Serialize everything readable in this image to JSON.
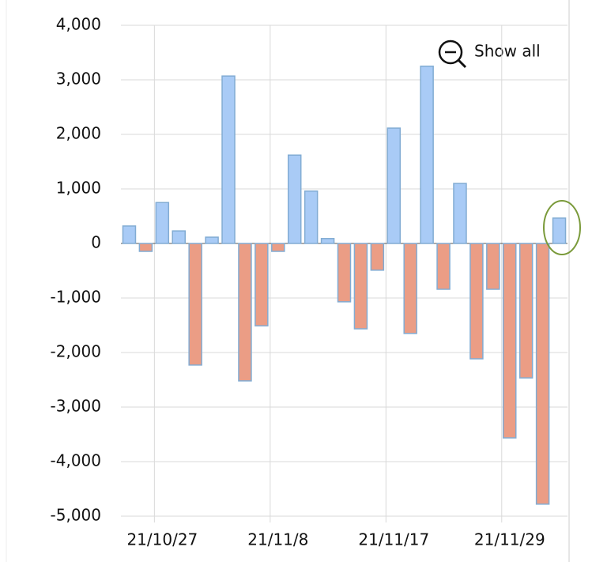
{
  "chart_data": {
    "type": "bar",
    "categories": [
      null,
      null,
      "21/10/27",
      null,
      null,
      null,
      null,
      null,
      null,
      "21/11/8",
      null,
      null,
      null,
      null,
      null,
      null,
      "21/11/17",
      null,
      null,
      null,
      null,
      null,
      null,
      "21/11/29",
      null,
      null,
      null
    ],
    "values": [
      320,
      -145,
      750,
      230,
      -2230,
      115,
      3070,
      -2520,
      -1510,
      -145,
      1620,
      960,
      90,
      -1070,
      -1565,
      -490,
      2115,
      -1650,
      3250,
      -840,
      1100,
      -2115,
      -840,
      -3565,
      -2465,
      -4780,
      465
    ],
    "colors": {
      "positive": "#a9cbf6",
      "negative": "#eb9d85",
      "edge": "#82acd3"
    },
    "ylim": [
      -5000,
      4000
    ],
    "yticks": [
      {
        "value": -5000,
        "label": "-5,000"
      },
      {
        "value": -4000,
        "label": "-4,000"
      },
      {
        "value": -3000,
        "label": "-3,000"
      },
      {
        "value": -2000,
        "label": "-2,000"
      },
      {
        "value": -1000,
        "label": "-1,000"
      },
      0,
      {
        "value": 1000,
        "label": "1,000"
      },
      {
        "value": 2000,
        "label": "2,000"
      },
      {
        "value": 3000,
        "label": "3,000"
      },
      {
        "value": 4000,
        "label": "4,000"
      }
    ],
    "grid": true
  },
  "ui": {
    "show_all": "Show all"
  }
}
